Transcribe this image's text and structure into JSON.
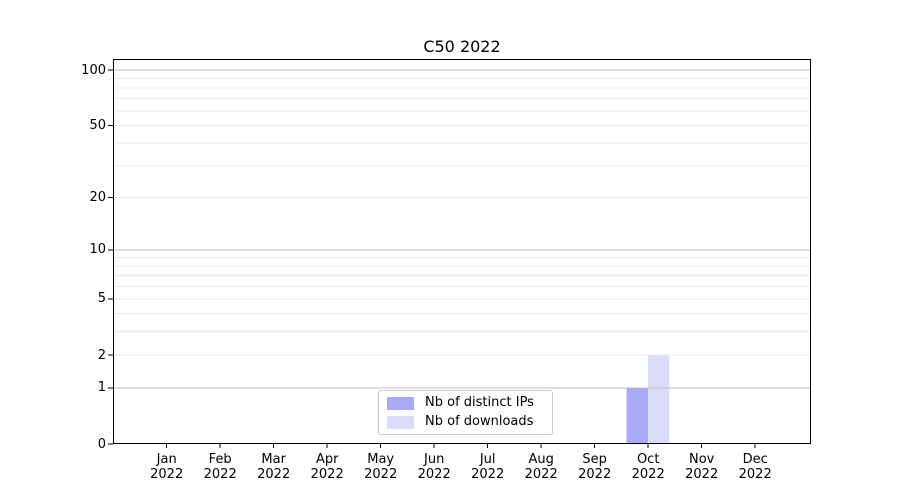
{
  "chart_data": {
    "type": "bar",
    "title": "C50 2022",
    "categories": [
      "Jan 2022",
      "Feb 2022",
      "Mar 2022",
      "Apr 2022",
      "May 2022",
      "Jun 2022",
      "Jul 2022",
      "Aug 2022",
      "Sep 2022",
      "Oct 2022",
      "Nov 2022",
      "Dec 2022"
    ],
    "series": [
      {
        "name": "Nb of distinct IPs",
        "color": "#a9a9f8",
        "values": [
          0,
          0,
          0,
          0,
          0,
          0,
          0,
          0,
          0,
          1,
          0,
          0
        ]
      },
      {
        "name": "Nb of downloads",
        "color": "#dbdbfa",
        "values": [
          0,
          0,
          0,
          0,
          0,
          0,
          0,
          0,
          0,
          2,
          0,
          0
        ]
      }
    ],
    "xlabel": "",
    "ylabel": "",
    "yscale": "log1p",
    "ylim": [
      0,
      116
    ],
    "yticks_labeled": [
      0,
      1,
      2,
      5,
      10,
      20,
      50,
      100
    ],
    "ygrid_major": [
      1,
      10,
      100
    ],
    "ygrid_minor": [
      2,
      3,
      4,
      5,
      6,
      7,
      8,
      9,
      20,
      30,
      40,
      50,
      60,
      70,
      80,
      90
    ],
    "grid": true,
    "legend_position": "lower center",
    "bar_group": "Oct 2022"
  },
  "colors": {
    "background": "#ffffff",
    "axis": "#000000",
    "grid_major": "#bdbdbd",
    "grid_minor": "#e9e9e9",
    "legend_border": "#cccccc",
    "text": "#000000"
  }
}
